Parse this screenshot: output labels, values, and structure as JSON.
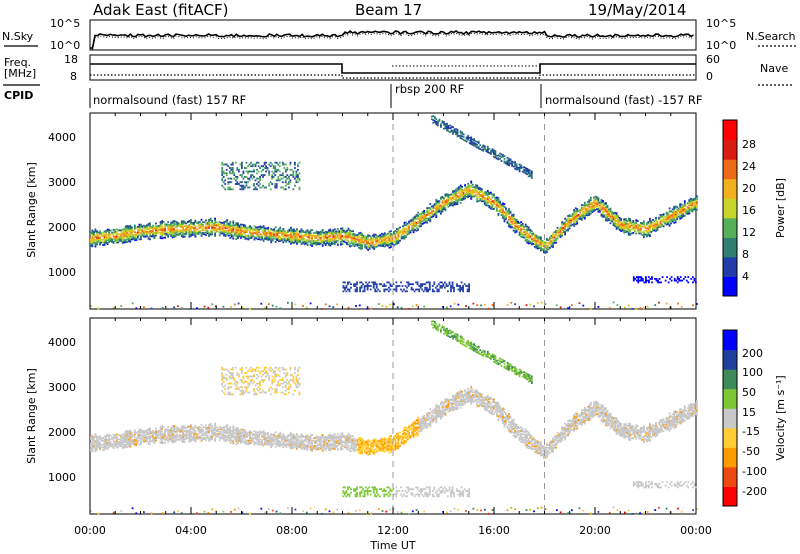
{
  "header": {
    "title": "Adak East (fitACF)",
    "beam": "Beam 17",
    "date": "19/May/2014"
  },
  "noise_panel": {
    "left_label": "N.Sky",
    "right_label": "N.Search",
    "left_ticks": [
      "10^5",
      "10^0"
    ],
    "right_ticks": [
      "10^5",
      "10^0"
    ]
  },
  "freq_panel": {
    "left_label_line1": "Freq.",
    "left_label_line2": "[MHz]",
    "right_label": "Nave",
    "left_ticks": [
      "18",
      "8"
    ],
    "right_ticks": [
      "60",
      "0"
    ]
  },
  "cpid": {
    "label": "CPID",
    "modes": [
      {
        "name": "normalsound (fast) 157 RF",
        "start_hour": 0,
        "end_hour": 12
      },
      {
        "name": "rbsp 200 RF",
        "start_hour": 12,
        "end_hour": 18
      },
      {
        "name": "normalsound (fast) -157 RF",
        "start_hour": 18,
        "end_hour": 24
      }
    ]
  },
  "colors": {
    "power_scale": [
      "#0000ff",
      "#1f3ca8",
      "#2e7f72",
      "#55b05a",
      "#c7d42a",
      "#f2b01c",
      "#ee6a14",
      "#d81d10",
      "#ff0000"
    ],
    "velocity_scale": [
      "#ff0000",
      "#ee4a10",
      "#ff9a00",
      "#ffcc33",
      "#c8c8c8",
      "#7cc832",
      "#3f8a5a",
      "#2040a0",
      "#0000ff"
    ],
    "gray": "#c8c8c8"
  },
  "power_colorbar": {
    "label": "Power [dB]",
    "ticks": [
      "28",
      "24",
      "20",
      "16",
      "12",
      "8",
      "4"
    ]
  },
  "velocity_colorbar": {
    "label": "Velocity [m s⁻¹]",
    "ticks": [
      "200",
      "100",
      "50",
      "15",
      "-15",
      "-50",
      "-100",
      "-200"
    ]
  },
  "axes": {
    "ylabel": "Slant Range [km]",
    "y_ticks": [
      "4000",
      "3000",
      "2000",
      "1000"
    ],
    "xlabel": "Time UT",
    "x_ticks": [
      "00:00",
      "04:00",
      "08:00",
      "12:00",
      "16:00",
      "20:00",
      "00:00"
    ]
  },
  "chart_data": {
    "type": "heatmap",
    "title": "Adak East (fitACF)",
    "xlabel": "Time UT",
    "ylabel": "Slant Range [km]",
    "xlim_hours": [
      0,
      24
    ],
    "ylim_km": [
      180,
      4600
    ],
    "main_echo_band": {
      "time_hours": [
        0,
        1,
        2,
        3,
        4,
        5,
        6,
        7,
        8,
        9,
        10,
        11,
        12,
        13,
        14,
        15,
        16,
        17,
        18,
        19,
        20,
        21,
        22,
        23,
        24
      ],
      "range_km": [
        1800,
        1850,
        1950,
        2000,
        2020,
        2050,
        1950,
        1900,
        1850,
        1800,
        1850,
        1700,
        1800,
        2200,
        2600,
        2900,
        2600,
        2000,
        1600,
        2200,
        2600,
        2100,
        2000,
        2300,
        2600
      ]
    },
    "power_db_range": [
      0,
      32
    ],
    "velocity_ms_range": [
      -200,
      200
    ],
    "mode_boundaries_hours": [
      12,
      18
    ]
  }
}
